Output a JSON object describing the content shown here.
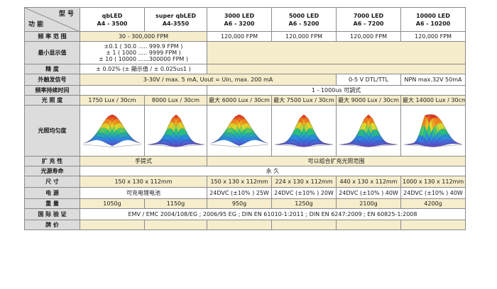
{
  "header": {
    "corner_top": "型 号",
    "corner_bottom": "功 能",
    "models": [
      {
        "name": "qbLED",
        "code": "A4 - 3500"
      },
      {
        "name": "super qbLED",
        "code": "A4-3550"
      },
      {
        "name": "3000 LED",
        "code": "A6 - 3200"
      },
      {
        "name": "5000 LED",
        "code": "A6 - 5200"
      },
      {
        "name": "7000 LED",
        "code": "A6 - 7200"
      },
      {
        "name": "10000 LED",
        "code": "A6 - 10200"
      }
    ]
  },
  "rows": {
    "freq_range": {
      "label": "频 率 范 围",
      "v1": "30 - 300,000 FPM",
      "v3": "120,000 FPM",
      "v4": "120,000 FPM",
      "v5": "120,000 FPM",
      "v6": "120,000 FPM"
    },
    "min_display": {
      "label": "最小显示值",
      "line1": "±0.1 ( 30.0 ..... 999.9 FPM )",
      "line2": "± 1   ( 1000 ..... 9999 FPM )",
      "line3": "± 10 ( 10000 ......300000 FPM )"
    },
    "accuracy": {
      "label": "精 度",
      "value": "± 0.02% (± 顯示值 / ± 0.025us1 )"
    },
    "trigger": {
      "label": "外触发信号",
      "v1": "3-30V / max. 5 mA,  Uout = Uin, max. 200 mA",
      "v5": "0-5 V DTL/TTL",
      "v6": "NPN max.32V 50mA"
    },
    "duration": {
      "label": "频率持续时间",
      "value": "1 - 1000us 可調式"
    },
    "illuminance": {
      "label": "光 照 度",
      "v1": "1750 Lux / 30cm",
      "v2": "8000 Lux / 30cm",
      "v3": "最大 6000 Lux / 30cm",
      "v4": "最大 7500 Lux / 30cm",
      "v5": "最大 9000 Lux / 30cm",
      "v6": "最大 14000 Lux / 30cm"
    },
    "uniformity": {
      "label": "光照均匀度"
    },
    "expansion": {
      "label": "扩 充 性",
      "v1": "手提式",
      "v3": "可以组合扩充光照范围"
    },
    "lifetime": {
      "label": "光源寿命",
      "value": "永 久"
    },
    "size": {
      "label": "尺 寸",
      "v1": "150 x 130 x 112mm",
      "v3": "150 x 130 x 112mm",
      "v4": "224 x 130 x 112mm",
      "v5": "440 x 130 x 112mm",
      "v6": "1000 x 130 x 112mm"
    },
    "power": {
      "label": "电 源",
      "v1": "可充电锂电池",
      "v3": "24DVC (±10% ) 25W",
      "v4": "24DVC (±10% ) 20W",
      "v5": "24DVC (±10% ) 40W",
      "v6": "24DVC (±10% ) 40W"
    },
    "weight": {
      "label": "重 量",
      "v1": "1050g",
      "v2": "1150g",
      "v3": "950g",
      "v4": "1250g",
      "v5": "2100g",
      "v6": "4200g"
    },
    "certification": {
      "label": "国 际 验 证",
      "value": "EMV / EMC 2004/108/EG ; 2006/95 EG ; DIN EN 61010-1:2011 ; DIN EN 6247:2009 ; EN 60825-1:2008"
    },
    "price": {
      "label": "牌 价"
    }
  },
  "surface_plots": [
    {
      "model": "qbLED",
      "peak": 1.0,
      "spread": 0.55,
      "bumps": 1
    },
    {
      "model": "super qbLED",
      "peak": 1.0,
      "spread": 0.4,
      "bumps": 1
    },
    {
      "model": "3000 LED",
      "peak": 1.0,
      "spread": 0.55,
      "bumps": 1
    },
    {
      "model": "5000 LED",
      "peak": 1.0,
      "spread": 0.4,
      "bumps": 1
    },
    {
      "model": "7000 LED",
      "peak": 1.0,
      "spread": 0.38,
      "bumps": 1
    },
    {
      "model": "10000 LED",
      "peak": 1.0,
      "spread": 0.42,
      "bumps": 2
    }
  ]
}
